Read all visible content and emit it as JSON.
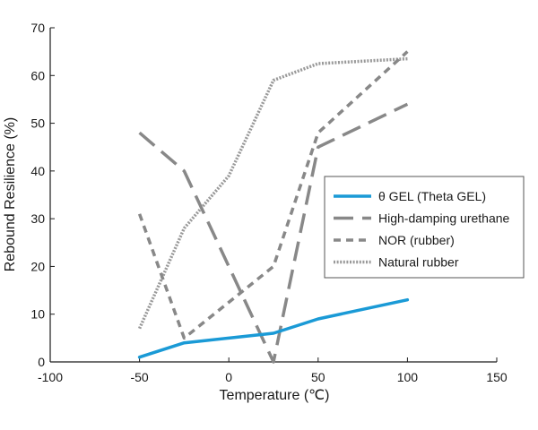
{
  "chart_data": {
    "type": "line",
    "title": "",
    "xlabel": "Temperature (℃)",
    "ylabel": "Rebound Resilience (%)",
    "xlim": [
      -100,
      150
    ],
    "ylim": [
      0,
      70
    ],
    "xticks": [
      -100,
      -50,
      0,
      50,
      100,
      150
    ],
    "yticks": [
      0,
      10,
      20,
      30,
      40,
      50,
      60,
      70
    ],
    "grid": false,
    "legend_position": "right",
    "series": [
      {
        "name": "θ GEL (Theta GEL)",
        "color": "#1a9ad6",
        "style": "solid",
        "x": [
          -50,
          -25,
          0,
          25,
          50,
          100
        ],
        "y": [
          1,
          4,
          5,
          6,
          9,
          13
        ]
      },
      {
        "name": "High-damping urethane",
        "color": "#888888",
        "style": "long-dash",
        "x": [
          -50,
          -25,
          25,
          50,
          100
        ],
        "y": [
          48,
          40,
          0,
          45,
          54
        ]
      },
      {
        "name": "NOR (rubber)",
        "color": "#888888",
        "style": "short-dash",
        "x": [
          -50,
          -25,
          25,
          50,
          100
        ],
        "y": [
          31,
          5,
          20,
          48,
          65
        ]
      },
      {
        "name": "Natural rubber",
        "color": "#999999",
        "style": "dotted",
        "x": [
          -50,
          -25,
          0,
          25,
          50,
          100
        ],
        "y": [
          7,
          28,
          39,
          59,
          62.5,
          63.5
        ]
      }
    ]
  }
}
